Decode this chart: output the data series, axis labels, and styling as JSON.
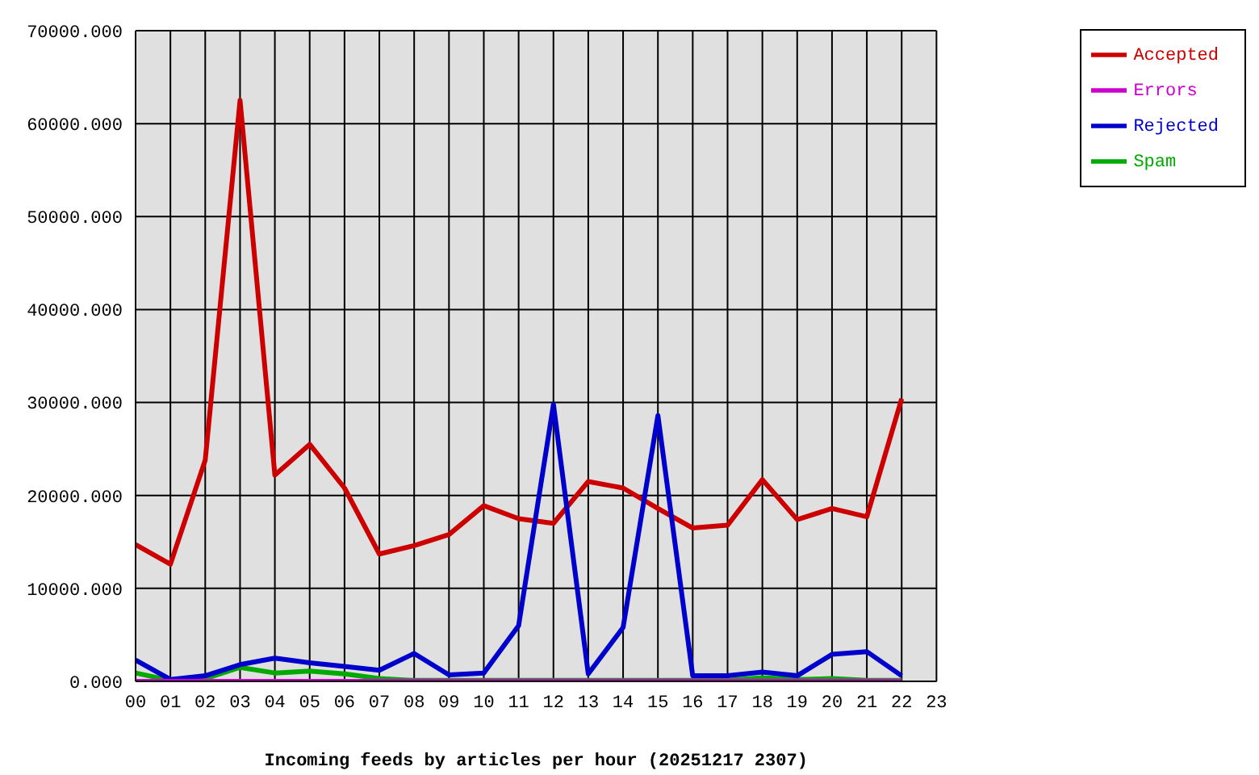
{
  "chart_data": {
    "type": "line",
    "xlabel": "Incoming feeds by articles per hour (20251217 2307)",
    "categories": [
      "00",
      "01",
      "02",
      "03",
      "04",
      "05",
      "06",
      "07",
      "08",
      "09",
      "10",
      "11",
      "12",
      "13",
      "14",
      "15",
      "16",
      "17",
      "18",
      "19",
      "20",
      "21",
      "22",
      "23"
    ],
    "series": [
      {
        "name": "Accepted",
        "color": "#cc0000",
        "values": [
          14700,
          12600,
          23800,
          62500,
          22200,
          25500,
          20800,
          13700,
          14600,
          15800,
          18900,
          17500,
          17000,
          21500,
          20800,
          18600,
          16500,
          16800,
          21700,
          17400,
          18600,
          17700,
          30400,
          null
        ]
      },
      {
        "name": "Spam",
        "color": "#00aa00",
        "values": [
          900,
          100,
          300,
          1500,
          900,
          1100,
          800,
          300,
          100,
          100,
          100,
          100,
          100,
          100,
          100,
          100,
          100,
          100,
          400,
          200,
          300,
          100,
          100,
          null
        ]
      },
      {
        "name": "Rejected",
        "color": "#0000cc",
        "values": [
          2300,
          200,
          600,
          1800,
          2500,
          2000,
          1600,
          1200,
          3000,
          700,
          900,
          6000,
          29800,
          800,
          5800,
          28600,
          600,
          600,
          1000,
          600,
          2900,
          3200,
          600,
          null
        ]
      },
      {
        "name": "Errors",
        "color": "#cc00cc",
        "values": [
          0,
          0,
          0,
          0,
          0,
          0,
          0,
          0,
          0,
          0,
          0,
          0,
          0,
          0,
          0,
          0,
          0,
          0,
          0,
          0,
          0,
          0,
          0,
          null
        ]
      }
    ],
    "ylim": [
      0,
      70000
    ],
    "yticks": [
      {
        "value": 0,
        "label": "0.000"
      },
      {
        "value": 10000,
        "label": "10000.000"
      },
      {
        "value": 20000,
        "label": "20000.000"
      },
      {
        "value": 30000,
        "label": "30000.000"
      },
      {
        "value": 40000,
        "label": "40000.000"
      },
      {
        "value": 50000,
        "label": "50000.000"
      },
      {
        "value": 60000,
        "label": "60000.000"
      },
      {
        "value": 70000,
        "label": "70000.000"
      }
    ],
    "grid": true,
    "legend": "top right",
    "marker": "none",
    "line_style": "solid"
  }
}
